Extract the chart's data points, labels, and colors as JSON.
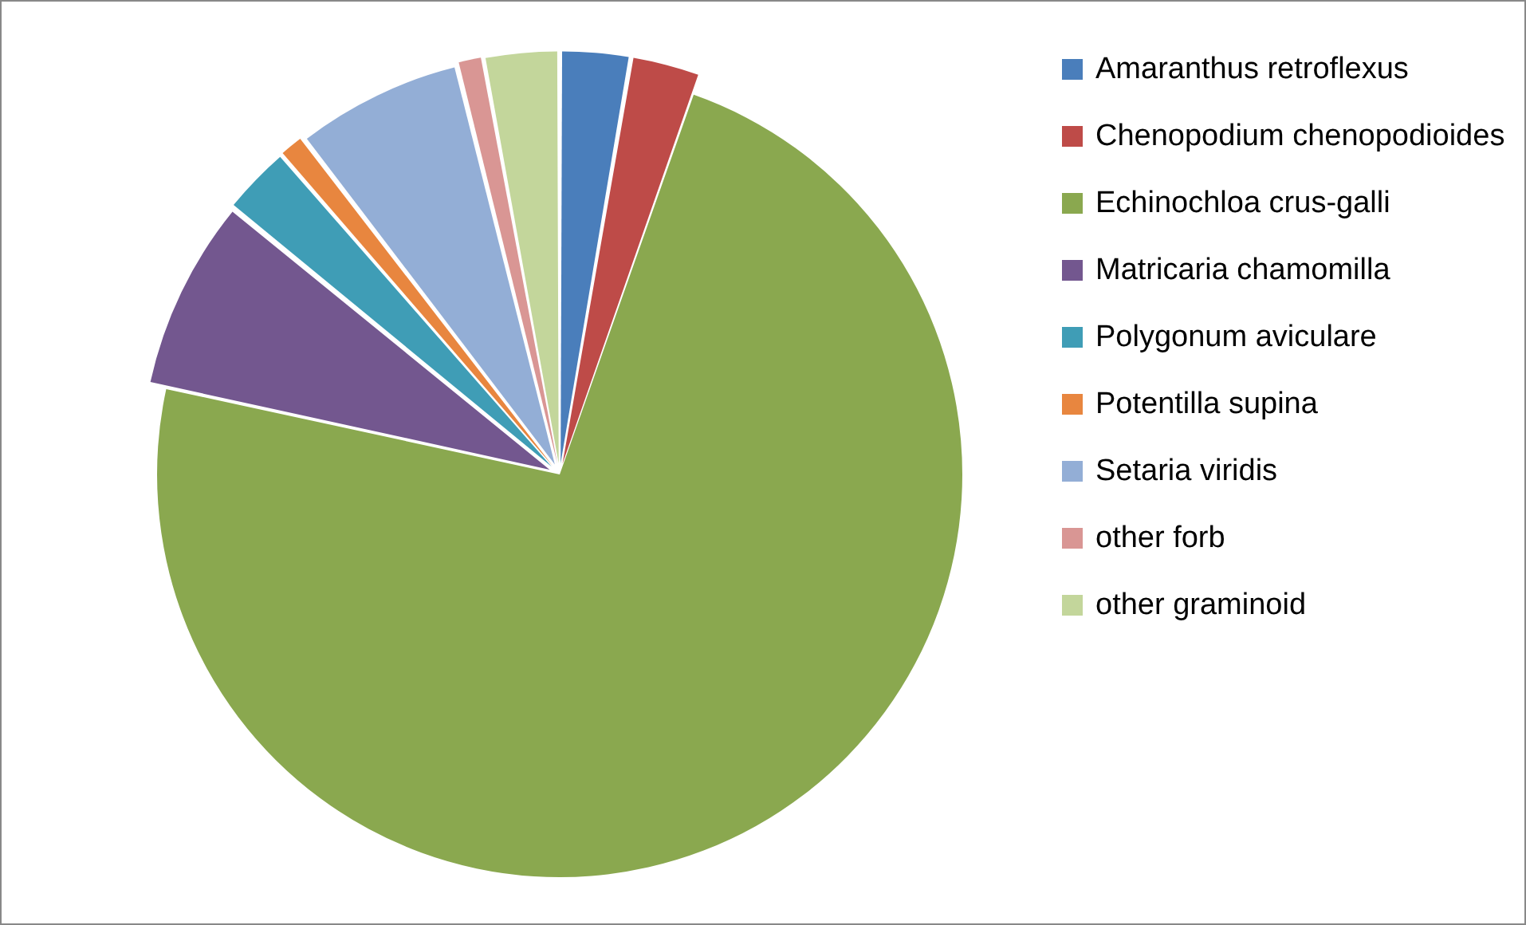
{
  "chart_data": {
    "type": "pie",
    "categories": [
      "Amaranthus retroflexus",
      "Chenopodium chenopodioides",
      "Echinochloa crus-galli",
      "Matricaria chamomilla",
      "Polygonum aviculare",
      "Potentilla supina",
      "Setaria viridis",
      "other forb",
      "other graminoid"
    ],
    "values": [
      2.7,
      2.7,
      73,
      7.5,
      2.7,
      1,
      6.5,
      1,
      2.9
    ],
    "colors": [
      "#4a7ebb",
      "#be4b48",
      "#8aa84f",
      "#73578f",
      "#3f9db6",
      "#e8863f",
      "#93aed6",
      "#d99694",
      "#c3d69b"
    ],
    "legend": "right"
  }
}
